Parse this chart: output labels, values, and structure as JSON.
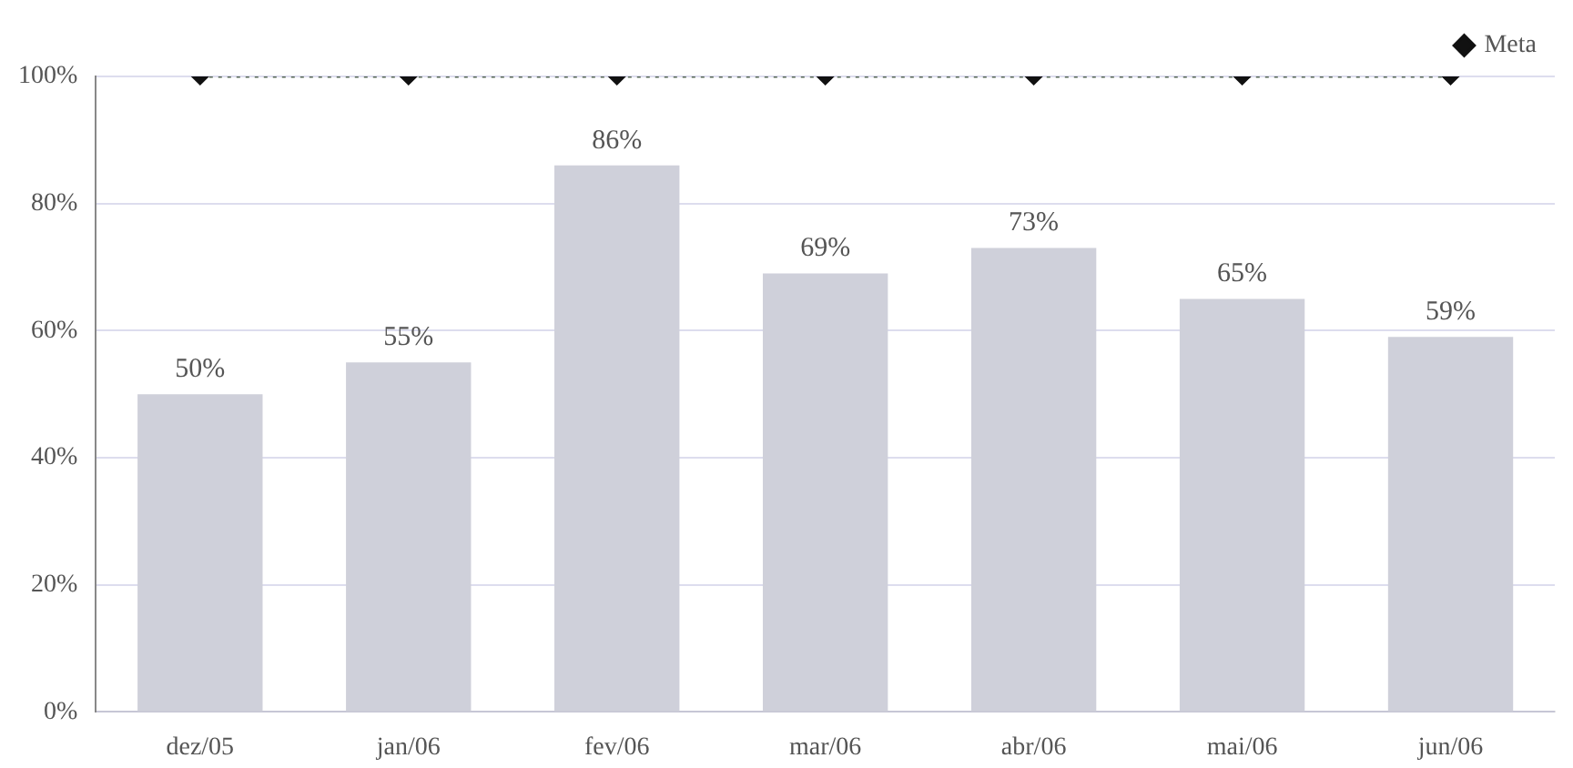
{
  "chart_data": {
    "type": "bar",
    "categories": [
      "dez/05",
      "jan/06",
      "fev/06",
      "mar/06",
      "abr/06",
      "mai/06",
      "jun/06"
    ],
    "series": [
      {
        "color": "#cfd0da",
        "values": [
          50,
          55,
          86,
          69,
          73,
          65,
          59
        ]
      },
      {
        "type": "line",
        "name": "Meta",
        "color": "#556655",
        "values": [
          100,
          100,
          100,
          100,
          100,
          100,
          100
        ],
        "marker": "diamond",
        "line_style": "dotted"
      }
    ],
    "value_labels": [
      "50%",
      "55%",
      "86%",
      "69%",
      "73%",
      "65%",
      "59%"
    ],
    "ylim": [
      0,
      100
    ],
    "yticks": [
      {
        "value": 0,
        "label": "0%"
      },
      {
        "value": 20,
        "label": "20%"
      },
      {
        "value": 40,
        "label": "40%"
      },
      {
        "value": 60,
        "label": "60%"
      },
      {
        "value": 80,
        "label": "80%"
      },
      {
        "value": 100,
        "label": "100%"
      }
    ],
    "grid": "y",
    "legend": "top right"
  }
}
